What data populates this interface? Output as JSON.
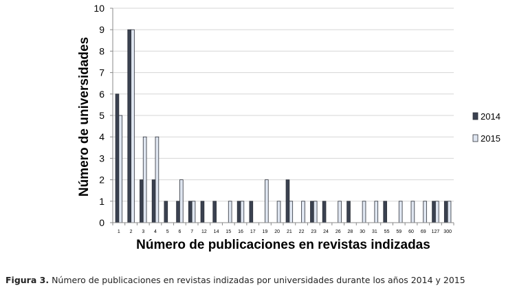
{
  "chart_data": {
    "type": "bar",
    "title": "",
    "xlabel": "Número de publicaciones en revistas indizadas",
    "ylabel": "Número de universidades",
    "ylim": [
      0,
      10
    ],
    "yticks": [
      0,
      1,
      2,
      3,
      4,
      5,
      6,
      7,
      8,
      9,
      10
    ],
    "grid": true,
    "legend_position": "right",
    "categories": [
      "1",
      "2",
      "3",
      "4",
      "5",
      "6",
      "7",
      "12",
      "14",
      "15",
      "16",
      "17",
      "19",
      "20",
      "21",
      "22",
      "23",
      "24",
      "26",
      "28",
      "30",
      "31",
      "55",
      "59",
      "60",
      "69",
      "127",
      "300"
    ],
    "series": [
      {
        "name": "2014",
        "color": "#3a4150",
        "values": [
          6,
          9,
          2,
          2,
          1,
          1,
          1,
          1,
          1,
          0,
          1,
          1,
          0,
          0,
          2,
          0,
          1,
          1,
          0,
          1,
          0,
          0,
          1,
          0,
          0,
          0,
          1,
          1
        ]
      },
      {
        "name": "2015",
        "color": "#dfe6f1",
        "values": [
          5,
          9,
          4,
          4,
          0,
          2,
          1,
          0,
          0,
          1,
          1,
          0,
          2,
          1,
          1,
          1,
          1,
          0,
          1,
          0,
          1,
          1,
          0,
          1,
          1,
          1,
          1,
          1
        ]
      }
    ]
  },
  "caption": {
    "label": "Figura 3.",
    "text": "Número de publicaciones en revistas indizadas por universidades durante los años 2014 y 2015"
  }
}
